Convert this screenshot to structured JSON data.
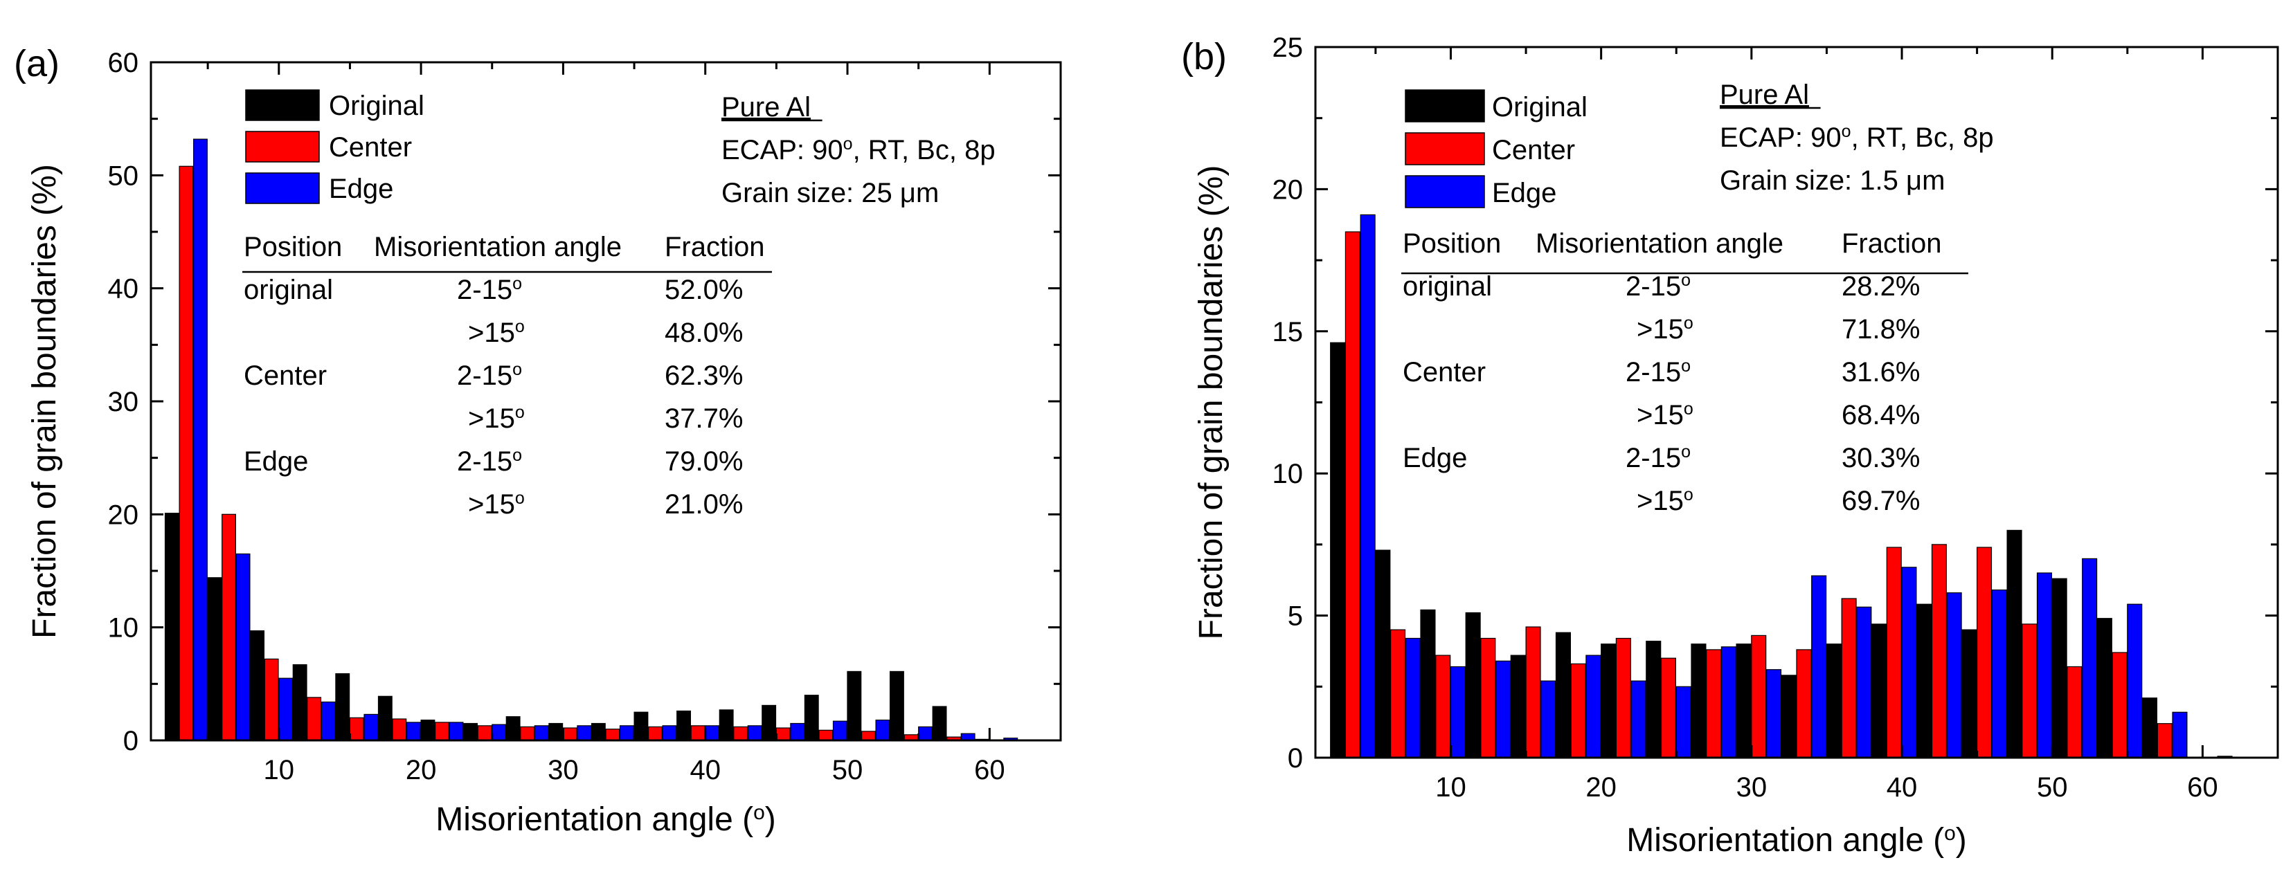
{
  "chart_data": [
    {
      "type": "bar",
      "panel_label": "(a)",
      "xlabel": "Misorientation angle (",
      "xlabel_unit_sup": "o",
      "xlabel_close": ")",
      "ylabel": "Fraction of grain boundaries (%)",
      "ylim": [
        0,
        60
      ],
      "xlim": [
        1,
        65
      ],
      "yticks": [
        0,
        10,
        20,
        30,
        40,
        50,
        60
      ],
      "xticks": [
        10,
        20,
        30,
        40,
        50,
        60
      ],
      "bin_starts": [
        2,
        5,
        8,
        11,
        14,
        17,
        20,
        23,
        26,
        29,
        32,
        35,
        38,
        41,
        44,
        47,
        50,
        53,
        56,
        59,
        62
      ],
      "bin_width": 3,
      "series": [
        {
          "name": "Original",
          "color": "#000000",
          "values": [
            20.1,
            14.4,
            9.7,
            6.7,
            5.9,
            3.9,
            1.8,
            1.5,
            2.1,
            1.5,
            1.5,
            2.5,
            2.6,
            2.7,
            3.1,
            4.0,
            6.1,
            6.1,
            3.0,
            0.1,
            0
          ]
        },
        {
          "name": "Center",
          "color": "#ff0000",
          "values": [
            50.8,
            20.0,
            7.2,
            3.8,
            2.0,
            1.9,
            1.6,
            1.3,
            1.2,
            1.1,
            1.0,
            1.2,
            1.3,
            1.2,
            1.1,
            0.9,
            0.8,
            0.5,
            0.3,
            0.05,
            0
          ]
        },
        {
          "name": "Edge",
          "color": "#0000ff",
          "values": [
            53.2,
            16.5,
            5.5,
            3.4,
            2.3,
            1.6,
            1.6,
            1.4,
            1.3,
            1.3,
            1.3,
            1.3,
            1.3,
            1.3,
            1.5,
            1.7,
            1.8,
            1.2,
            0.6,
            0.2,
            0
          ]
        }
      ],
      "info": {
        "material": "Pure Al",
        "process": "ECAP: 90",
        "process_sup": "o",
        "process_rest": ", RT, Bc, 8p",
        "grain_size_label": "Grain size:  25 ",
        "grain_size_unit": "μm"
      },
      "table": {
        "headers": [
          "Position",
          "Misorientation angle",
          "Fraction"
        ],
        "rows": [
          {
            "position": "original",
            "angle": "2-15",
            "fraction": "52.0%"
          },
          {
            "position": "",
            "angle": ">15",
            "fraction": "48.0%"
          },
          {
            "position": "Center",
            "angle": "2-15",
            "fraction": "62.3%"
          },
          {
            "position": "",
            "angle": ">15",
            "fraction": "37.7%"
          },
          {
            "position": "Edge",
            "angle": "2-15",
            "fraction": "79.0%"
          },
          {
            "position": "",
            "angle": ">15",
            "fraction": "21.0%"
          }
        ],
        "degree_sup": "o"
      }
    },
    {
      "type": "bar",
      "panel_label": "(b)",
      "xlabel": "Misorientation angle (",
      "xlabel_unit_sup": "o",
      "xlabel_close": ")",
      "ylabel": "Fraction of grain boundaries (%)",
      "ylim": [
        0,
        25
      ],
      "xlim": [
        1,
        65
      ],
      "yticks": [
        0,
        5,
        10,
        15,
        20,
        25
      ],
      "xticks": [
        10,
        20,
        30,
        40,
        50,
        60
      ],
      "bin_starts": [
        2,
        5,
        8,
        11,
        14,
        17,
        20,
        23,
        26,
        29,
        32,
        35,
        38,
        41,
        44,
        47,
        50,
        53,
        56,
        59,
        62
      ],
      "bin_width": 3,
      "series": [
        {
          "name": "Original",
          "color": "#000000",
          "values": [
            14.6,
            7.3,
            5.2,
            5.1,
            3.6,
            4.4,
            4.0,
            4.1,
            4.0,
            4.0,
            2.9,
            4.0,
            4.7,
            5.4,
            4.5,
            8.0,
            6.3,
            4.9,
            2.1,
            0,
            0
          ]
        },
        {
          "name": "Center",
          "color": "#ff0000",
          "values": [
            18.5,
            4.5,
            3.6,
            4.2,
            4.6,
            3.3,
            4.2,
            3.5,
            3.8,
            4.3,
            3.8,
            5.6,
            7.4,
            7.5,
            7.4,
            4.7,
            3.2,
            3.7,
            1.2,
            0,
            0
          ]
        },
        {
          "name": "Edge",
          "color": "#0000ff",
          "values": [
            19.1,
            4.2,
            3.2,
            3.4,
            2.7,
            3.6,
            2.7,
            2.5,
            3.9,
            3.1,
            6.4,
            5.3,
            6.7,
            5.8,
            5.9,
            6.5,
            7.0,
            5.4,
            1.6,
            0.05,
            0
          ]
        }
      ],
      "info": {
        "material": "Pure Al",
        "process": "ECAP: 90",
        "process_sup": "o",
        "process_rest": ", RT, Bc, 8p",
        "grain_size_label": "Grain size:  1.5 ",
        "grain_size_unit": "μm"
      },
      "table": {
        "headers": [
          "Position",
          "Misorientation angle",
          "Fraction"
        ],
        "rows": [
          {
            "position": "original",
            "angle": "2-15",
            "fraction": "28.2%"
          },
          {
            "position": "",
            "angle": ">15",
            "fraction": "71.8%"
          },
          {
            "position": "Center",
            "angle": "2-15",
            "fraction": "31.6%"
          },
          {
            "position": "",
            "angle": ">15",
            "fraction": "68.4%"
          },
          {
            "position": "Edge",
            "angle": "2-15",
            "fraction": "30.3%"
          },
          {
            "position": "",
            "angle": ">15",
            "fraction": "69.7%"
          }
        ],
        "degree_sup": "o"
      }
    }
  ]
}
